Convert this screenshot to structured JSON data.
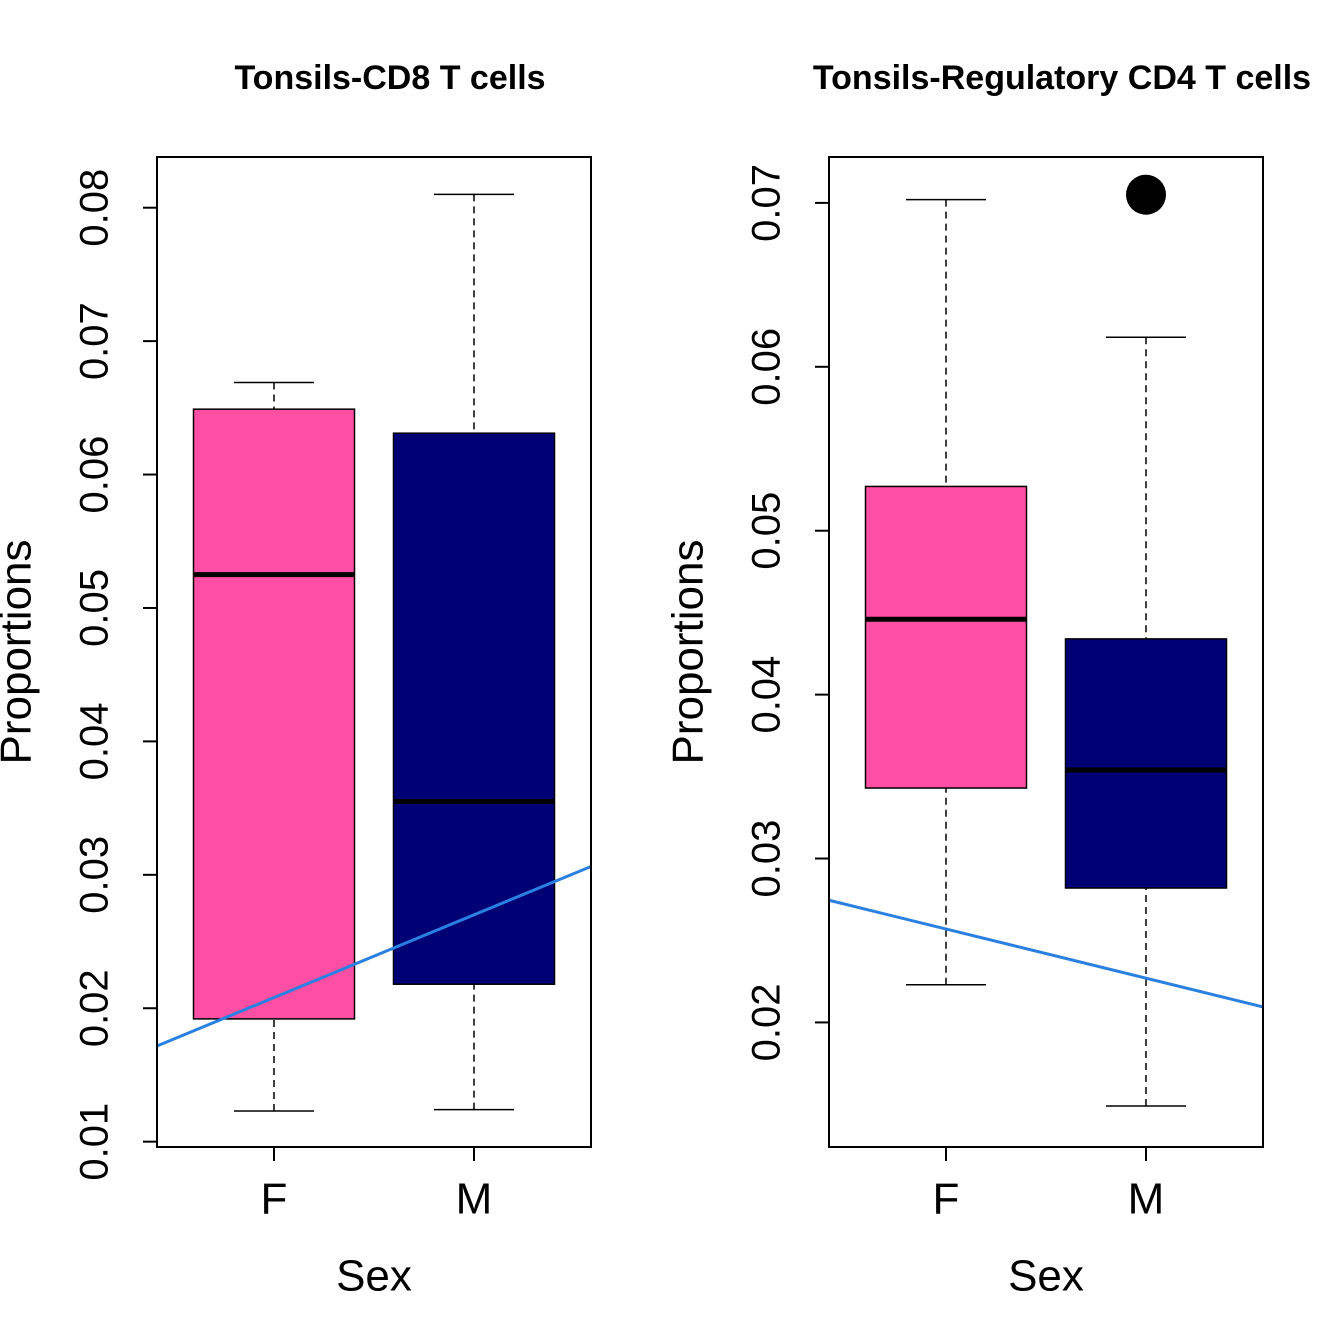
{
  "chart_data": [
    {
      "type": "box",
      "title": "Tonsils-CD8 T cells",
      "x_label": "Sex",
      "y_label": "Proportions",
      "categories": [
        "F",
        "M"
      ],
      "boxes": [
        {
          "color": "#ff4fa4",
          "whisker_low": 0.0123,
          "q1": 0.0192,
          "median": 0.0525,
          "q3": 0.0649,
          "whisker_high": 0.0669
        },
        {
          "color": "#000075",
          "whisker_low": 0.0124,
          "q1": 0.0218,
          "median": 0.0355,
          "q3": 0.0631,
          "whisker_high": 0.081
        }
      ],
      "trend_line": {
        "color": "#2a80e0",
        "values": [
          0.0208,
          0.027
        ]
      },
      "ylim": [
        0.0096,
        0.0838
      ],
      "yticks": [
        0.01,
        0.02,
        0.03,
        0.04,
        0.05,
        0.06,
        0.07,
        0.08
      ]
    },
    {
      "type": "box",
      "title": "Tonsils-Regulatory CD4 T cells",
      "x_label": "Sex",
      "y_label": "Proportions",
      "categories": [
        "F",
        "M"
      ],
      "boxes": [
        {
          "color": "#ff4fa4",
          "whisker_low": 0.0223,
          "q1": 0.0343,
          "median": 0.0446,
          "q3": 0.0527,
          "whisker_high": 0.0702
        },
        {
          "color": "#000075",
          "whisker_low": 0.0149,
          "q1": 0.0282,
          "median": 0.0354,
          "q3": 0.0434,
          "whisker_high": 0.0618,
          "outliers": [
            0.0705
          ]
        }
      ],
      "trend_line": {
        "color": "#2a80e0",
        "values": [
          0.0257,
          0.0227
        ]
      },
      "ylim": [
        0.0124,
        0.0728
      ],
      "yticks": [
        0.02,
        0.03,
        0.04,
        0.05,
        0.06,
        0.07
      ]
    }
  ]
}
